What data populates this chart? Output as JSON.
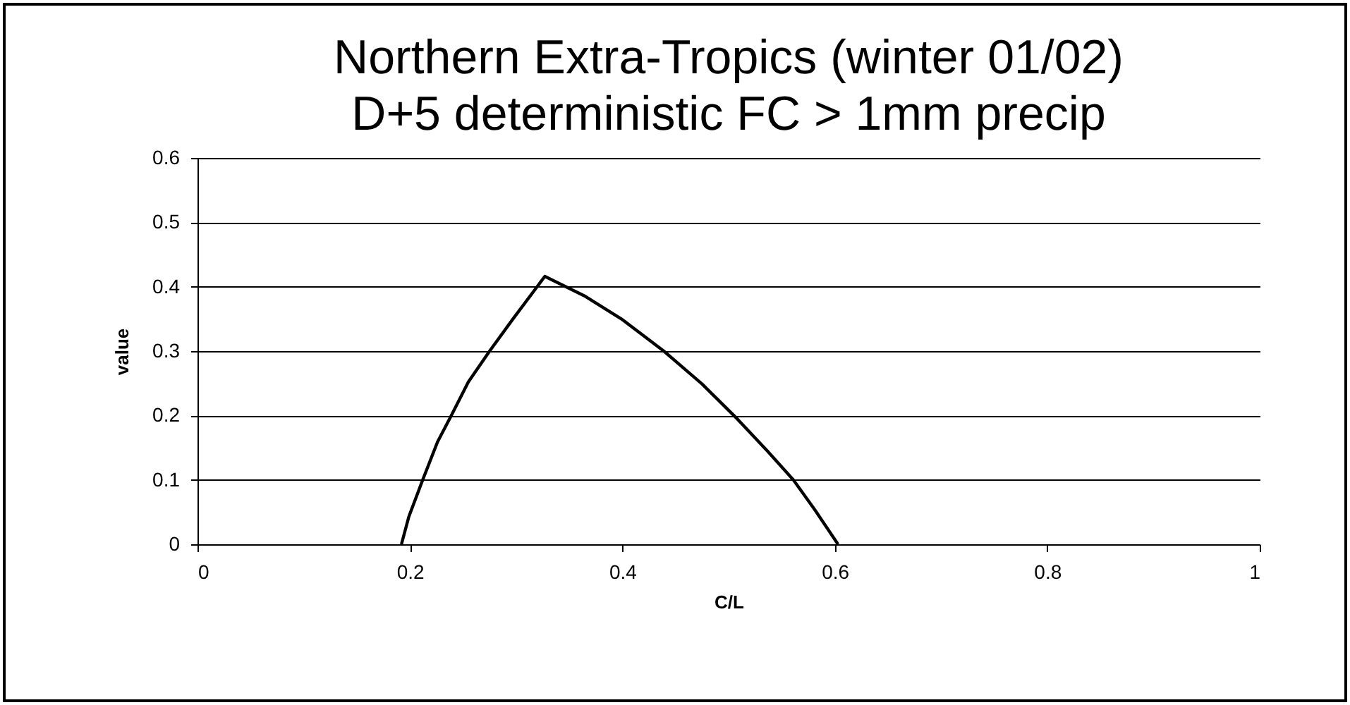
{
  "chart_data": {
    "type": "line",
    "title": [
      "Northern Extra-Tropics (winter 01/02)",
      "D+5 deterministic FC > 1mm precip"
    ],
    "xlabel": "C/L",
    "ylabel": "value",
    "x": [
      0.192,
      0.199,
      0.212,
      0.226,
      0.239,
      0.255,
      0.275,
      0.297,
      0.327,
      0.364,
      0.399,
      0.439,
      0.475,
      0.508,
      0.537,
      0.561,
      0.581,
      0.603
    ],
    "series": [
      {
        "color": "#000000",
        "values": [
          0,
          0.043,
          0.1,
          0.159,
          0.2,
          0.252,
          0.3,
          0.35,
          0.416,
          0.386,
          0.35,
          0.3,
          0.249,
          0.195,
          0.144,
          0.1,
          0.054,
          0
        ]
      }
    ],
    "xlim": [
      0,
      1
    ],
    "xticks": [
      0,
      0.2,
      0.4,
      0.6,
      0.8,
      1
    ],
    "ylim": [
      0,
      0.6
    ],
    "yticks": [
      0,
      0.1,
      0.2,
      0.3,
      0.4,
      0.5,
      0.6
    ],
    "grid": "y",
    "legend": false,
    "marker": "none",
    "line_style": "solid"
  }
}
